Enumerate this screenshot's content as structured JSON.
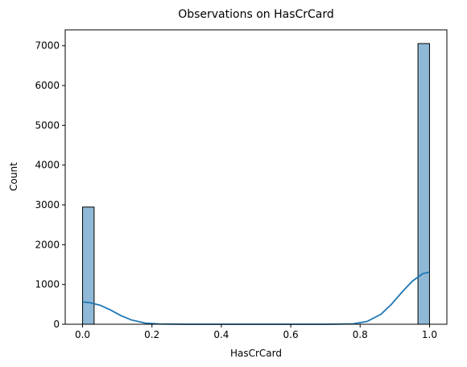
{
  "chart_data": {
    "type": "bar",
    "title": "Observations on HasCrCard",
    "xlabel": "HasCrCard",
    "ylabel": "Count",
    "xlim": [
      -0.05,
      1.05
    ],
    "ylim": [
      0,
      7400
    ],
    "xticks": [
      0.0,
      0.2,
      0.4,
      0.6,
      0.8,
      1.0
    ],
    "xtick_labels": [
      "0.0",
      "0.2",
      "0.4",
      "0.6",
      "0.8",
      "1.0"
    ],
    "yticks": [
      0,
      1000,
      2000,
      3000,
      4000,
      5000,
      6000,
      7000
    ],
    "ytick_labels": [
      "0",
      "1000",
      "2000",
      "3000",
      "4000",
      "5000",
      "6000",
      "7000"
    ],
    "bins": [
      {
        "x0": 0.0,
        "x1": 0.0333,
        "count": 2945
      },
      {
        "x0": 0.9667,
        "x1": 1.0,
        "count": 7055
      }
    ],
    "kde_curve": {
      "x": [
        0.0,
        0.02,
        0.05,
        0.08,
        0.11,
        0.14,
        0.18,
        0.22,
        0.3,
        0.4,
        0.5,
        0.6,
        0.7,
        0.78,
        0.82,
        0.86,
        0.89,
        0.92,
        0.95,
        0.98,
        1.0
      ],
      "y": [
        560,
        545,
        480,
        360,
        220,
        110,
        30,
        8,
        0,
        0,
        0,
        0,
        0,
        10,
        70,
        250,
        500,
        800,
        1080,
        1270,
        1310
      ]
    },
    "bar_color": "#8fb9d6",
    "line_color": "#1f77b4",
    "grid": false
  }
}
